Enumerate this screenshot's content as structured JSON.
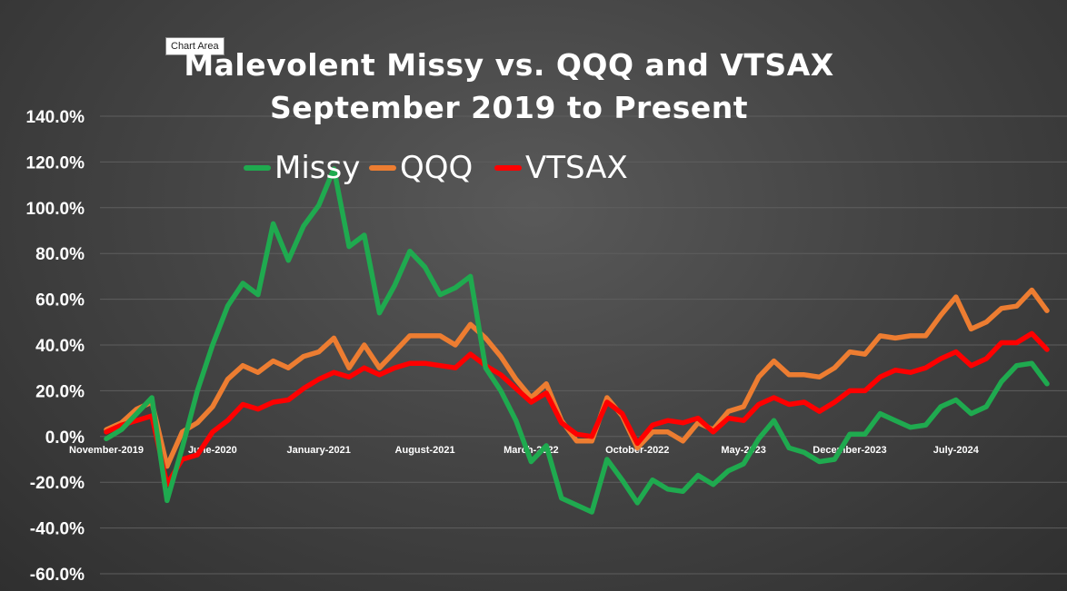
{
  "tooltip": "Chart Area",
  "colors": {
    "background": "#3f3f3f",
    "grid": "#5e5e5e",
    "text": "#ffffff",
    "missy": "#1faa4f",
    "qqq": "#ed7d31",
    "vtsax": "#ff0000"
  },
  "chart_data": {
    "type": "line",
    "title": "Malevolent Missy vs. QQQ and VTSAX",
    "subtitle": "September 2019 to Present",
    "xlabel": "",
    "ylabel": "",
    "ylim": [
      -60,
      140
    ],
    "yticks": [
      -60,
      -40,
      -20,
      0,
      20,
      40,
      60,
      80,
      100,
      120,
      140
    ],
    "ytick_labels": [
      "-60.0%",
      "-40.0%",
      "-20.0%",
      "0.0%",
      "20.0%",
      "40.0%",
      "60.0%",
      "80.0%",
      "100.0%",
      "120.0%",
      "140.0%"
    ],
    "x_tick_labels": [
      {
        "label": "November-2019",
        "index": 0
      },
      {
        "label": "June-2020",
        "index": 7
      },
      {
        "label": "January-2021",
        "index": 14
      },
      {
        "label": "August-2021",
        "index": 21
      },
      {
        "label": "March-2022",
        "index": 28
      },
      {
        "label": "October-2022",
        "index": 35
      },
      {
        "label": "May-2023",
        "index": 42
      },
      {
        "label": "December-2023",
        "index": 49
      },
      {
        "label": "July-2024",
        "index": 56
      }
    ],
    "legend": [
      "Missy",
      "QQQ",
      "VTSAX"
    ],
    "legend_position": "top",
    "series": [
      {
        "name": "Missy",
        "values": [
          -1,
          3,
          10,
          17,
          -28,
          -5,
          20,
          40,
          57,
          67,
          62,
          93,
          77,
          92,
          101,
          117,
          83,
          88,
          54,
          66,
          81,
          74,
          62,
          65,
          70,
          30,
          20,
          7,
          -11,
          -4,
          -27,
          -30,
          -33,
          -10,
          -19,
          -29,
          -19,
          -23,
          -24,
          -17,
          -21,
          -15,
          -12,
          -1,
          7,
          -5,
          -7,
          -11,
          -10,
          1,
          1,
          10,
          7,
          4,
          5,
          13,
          16,
          10,
          13,
          24,
          31,
          32,
          23
        ]
      },
      {
        "name": "QQQ",
        "values": [
          3,
          6,
          12,
          15,
          -13,
          2,
          6,
          13,
          25,
          31,
          28,
          33,
          30,
          35,
          37,
          43,
          30,
          40,
          30,
          37,
          44,
          44,
          44,
          40,
          49,
          43,
          35,
          25,
          17,
          23,
          7,
          -2,
          -2,
          17,
          9,
          -5,
          2,
          2,
          -2,
          6,
          3,
          11,
          13,
          26,
          33,
          27,
          27,
          26,
          30,
          37,
          36,
          44,
          43,
          44,
          44,
          53,
          61,
          47,
          50,
          56,
          57,
          64,
          55
        ]
      },
      {
        "name": "VTSAX",
        "values": [
          2,
          5,
          7,
          9,
          -21,
          -10,
          -8,
          2,
          7,
          14,
          12,
          15,
          16,
          21,
          25,
          28,
          26,
          30,
          27,
          30,
          32,
          32,
          31,
          30,
          36,
          31,
          27,
          21,
          15,
          19,
          6,
          1,
          0,
          15,
          10,
          -3,
          5,
          7,
          6,
          8,
          2,
          8,
          7,
          14,
          17,
          14,
          15,
          11,
          15,
          20,
          20,
          26,
          29,
          28,
          30,
          34,
          37,
          31,
          34,
          41,
          41,
          45,
          38
        ]
      }
    ]
  }
}
